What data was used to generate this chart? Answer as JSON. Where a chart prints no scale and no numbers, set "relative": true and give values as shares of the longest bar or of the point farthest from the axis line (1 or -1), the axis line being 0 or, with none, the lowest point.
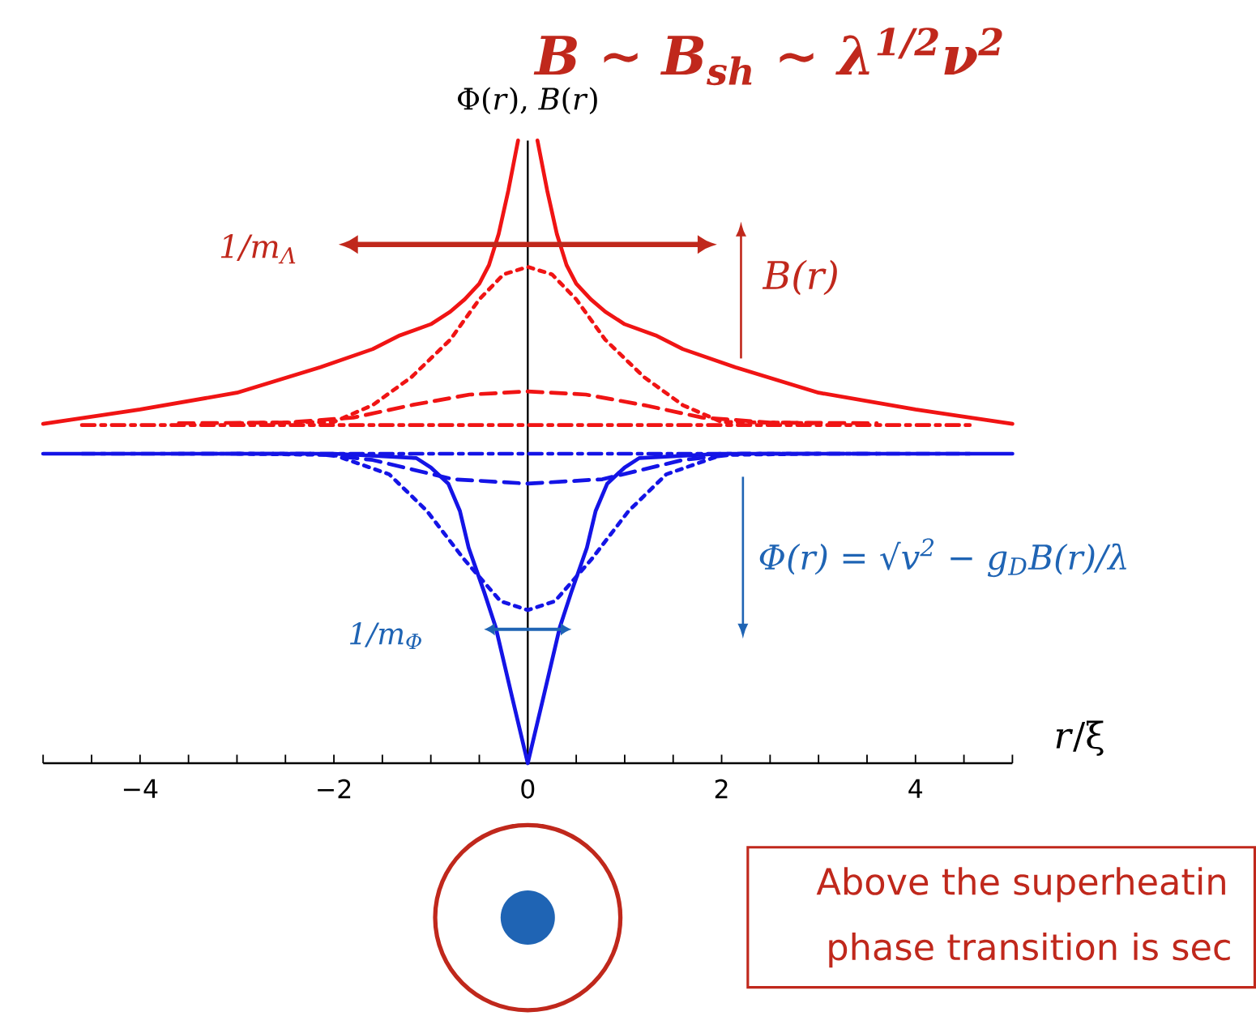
{
  "chart_data": {
    "type": "line",
    "relative": true,
    "title": "B ∼ B$_{sh}$ ∼ λ$^{1/2}$ν$^{2}$",
    "xlabel": "*r*/ξ",
    "ylabel": "Φ(*r*), *B*(*r*)",
    "xlim": [
      -5,
      5
    ],
    "xticks": [
      {
        "value": -5,
        "label": null
      },
      {
        "value": -4.5,
        "label": null
      },
      {
        "value": -4,
        "label": "−4"
      },
      {
        "value": -3.5,
        "label": null
      },
      {
        "value": -3,
        "label": null
      },
      {
        "value": -2.5,
        "label": null
      },
      {
        "value": -2,
        "label": "−2"
      },
      {
        "value": -1.5,
        "label": null
      },
      {
        "value": -1,
        "label": null
      },
      {
        "value": -0.5,
        "label": null
      },
      0,
      {
        "value": 0.5,
        "label": null
      },
      {
        "value": 1,
        "label": null
      },
      {
        "value": 1.5,
        "label": null
      },
      2,
      {
        "value": 2.5,
        "label": null
      },
      {
        "value": 3,
        "label": null
      },
      {
        "value": 3.5,
        "label": null
      },
      4,
      {
        "value": 4.5,
        "label": null
      },
      {
        "value": 5,
        "label": null
      }
    ],
    "tick_labels": "x",
    "marker": "none",
    "series": [
      {
        "color": "#f01414",
        "line_style": "solid",
        "x": [
          -5,
          -4,
          -3,
          -2.14,
          -1.6,
          -1.32,
          -1.0,
          -0.8,
          -0.65,
          -0.5,
          -0.4,
          -0.3,
          -0.2,
          -0.15,
          -0.1,
          0,
          0.1,
          0.15,
          0.2,
          0.3,
          0.4,
          0.5,
          0.65,
          0.8,
          1.0,
          1.32,
          1.6,
          2.14,
          3,
          4,
          5
        ],
        "values": [
          0.545,
          0.568,
          0.595,
          0.636,
          0.665,
          0.687,
          0.705,
          0.725,
          0.745,
          0.77,
          0.8,
          0.85,
          0.92,
          0.96,
          1.0,
          null,
          1.0,
          0.96,
          0.92,
          0.85,
          0.8,
          0.77,
          0.745,
          0.725,
          0.705,
          0.687,
          0.665,
          0.636,
          0.595,
          0.568,
          0.545
        ]
      },
      {
        "color": "#f01414",
        "line_style": "dotted",
        "x": [
          -3,
          -2,
          -1.6,
          -1.2,
          -0.8,
          -0.5,
          -0.25,
          0,
          0.25,
          0.5,
          0.8,
          1.2,
          1.6,
          2,
          3
        ],
        "values": [
          0.546,
          0.548,
          0.575,
          0.62,
          0.68,
          0.745,
          0.785,
          0.797,
          0.785,
          0.745,
          0.68,
          0.62,
          0.575,
          0.548,
          0.546
        ]
      },
      {
        "color": "#f01414",
        "line_style": "dashed",
        "x": [
          -3.6,
          -2.5,
          -1.8,
          -1.2,
          -0.6,
          0,
          0.6,
          1.2,
          1.8,
          2.5,
          3.6
        ],
        "values": [
          0.546,
          0.547,
          0.555,
          0.575,
          0.592,
          0.597,
          0.592,
          0.575,
          0.555,
          0.547,
          0.546
        ]
      },
      {
        "color": "#f01414",
        "line_style": "dashdot",
        "x": [
          -4.6,
          0,
          4.6
        ],
        "values": [
          0.543,
          0.543,
          0.543
        ]
      },
      {
        "color": "#1414e6",
        "line_style": "solid",
        "x": [
          -5,
          -2,
          -1.15,
          -1.0,
          -0.82,
          -0.7,
          -0.61,
          -0.45,
          -0.33,
          -0.16,
          0,
          0.16,
          0.33,
          0.45,
          0.61,
          0.7,
          0.82,
          1.0,
          1.15,
          2,
          5
        ],
        "values": [
          0.497,
          0.497,
          0.49,
          0.475,
          0.449,
          0.405,
          0.346,
          0.275,
          0.218,
          0.105,
          0,
          0.105,
          0.218,
          0.275,
          0.346,
          0.405,
          0.449,
          0.475,
          0.49,
          0.497,
          0.497
        ]
      },
      {
        "color": "#1414e6",
        "line_style": "dotted",
        "x": [
          -3,
          -2,
          -1.43,
          -1.04,
          -0.66,
          -0.28,
          0,
          0.28,
          0.66,
          1.04,
          1.43,
          2,
          3
        ],
        "values": [
          0.497,
          0.495,
          0.464,
          0.405,
          0.328,
          0.26,
          0.246,
          0.26,
          0.328,
          0.405,
          0.464,
          0.495,
          0.497
        ]
      },
      {
        "color": "#1414e6",
        "line_style": "dashed",
        "x": [
          -3.6,
          -2.2,
          -1.6,
          -0.77,
          0,
          0.77,
          1.6,
          2.2,
          3.6
        ],
        "values": [
          0.497,
          0.497,
          0.487,
          0.456,
          0.449,
          0.456,
          0.487,
          0.497,
          0.497
        ]
      },
      {
        "color": "#1414e6",
        "line_style": "dashdot",
        "x": [
          -4.6,
          0,
          4.6
        ],
        "values": [
          0.497,
          0.497,
          0.497
        ]
      }
    ],
    "annotations": [
      "1/m$_{Λ}$",
      "B(r)",
      "Φ(r) = √v$^{2}$ − g$_{D}$B(r)/λ",
      "1/m$_{Φ}$",
      "Above the superheatin",
      "phase transition is sec"
    ]
  }
}
